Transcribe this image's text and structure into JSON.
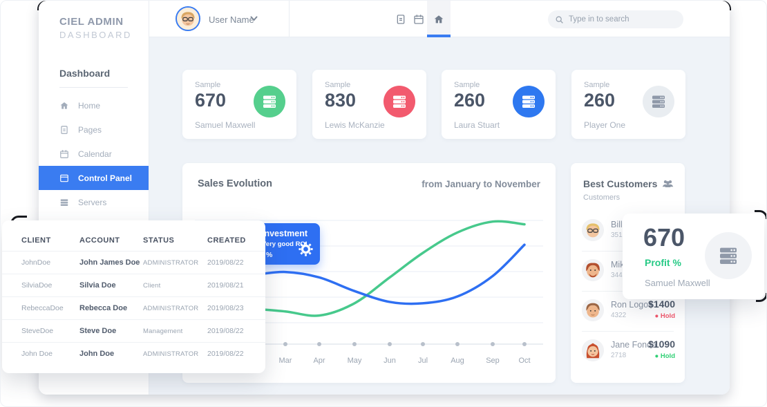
{
  "brand": {
    "line1": "CIEL ADMIN",
    "line2": "DASHBOARD"
  },
  "sidebar": {
    "section": "Dashboard",
    "items": [
      {
        "label": "Home",
        "icon": "home-icon",
        "active": false
      },
      {
        "label": "Pages",
        "icon": "pages-icon",
        "active": false
      },
      {
        "label": "Calendar",
        "icon": "calendar-icon",
        "active": false
      },
      {
        "label": "Control Panel",
        "icon": "control-panel-icon",
        "active": true
      },
      {
        "label": "Servers",
        "icon": "servers-icon",
        "active": false
      }
    ]
  },
  "topbar": {
    "user_name": "User Name",
    "search_placeholder": "Type in to search",
    "icons": [
      "pages-icon",
      "calendar-icon",
      "home-icon"
    ]
  },
  "colors": {
    "accent_blue": "#3a7cf1",
    "green": "#47c98c",
    "red": "#f25a6e",
    "muted_circle": "#e9edf1",
    "dark_text": "#4b5668",
    "black_accent": "#17191e"
  },
  "stat_cards": [
    {
      "label": "Sample",
      "value": "670",
      "person": "Samuel Maxwell",
      "accent": "#55cf8d"
    },
    {
      "label": "Sample",
      "value": "830",
      "person": "Lewis McKanzie",
      "accent": "#f25a6e"
    },
    {
      "label": "Sample",
      "value": "260",
      "person": "Laura Stuart",
      "accent": "#2e78f0"
    },
    {
      "label": "Sample",
      "value": "260",
      "person": "Player One",
      "accent": "#e9edf1"
    }
  ],
  "sales_panel": {
    "title": "Sales Evolution",
    "subtitle": "from January to November",
    "tooltip": {
      "title": "Investment",
      "subtitle": "Very good ROI",
      "percent": "%"
    }
  },
  "chart_data": {
    "type": "line",
    "title": "Sales Evolution",
    "subtitle": "from January to November",
    "categories": [
      "Mar",
      "Apr",
      "May",
      "Jun",
      "Jul",
      "Aug",
      "Sep",
      "Oct"
    ],
    "series": [
      {
        "name": "green",
        "color": "#47c98c",
        "values": [
          24,
          21,
          30,
          49,
          67,
          82,
          90,
          88
        ]
      },
      {
        "name": "blue",
        "color": "#2e6ff2",
        "values": [
          53,
          49,
          39,
          31,
          30,
          35,
          50,
          73
        ]
      }
    ],
    "ylim": [
      0,
      100
    ],
    "grid": true,
    "legend": "none"
  },
  "customers_panel": {
    "title": "Best Customers",
    "subtitle": "Customers",
    "items": [
      {
        "name": "Bill Str",
        "id": "3512",
        "amount": "",
        "status": "",
        "status_color": ""
      },
      {
        "name": "Mike H",
        "id": "3442",
        "amount": "",
        "status": "",
        "status_color": ""
      },
      {
        "name": "Ron Logos",
        "id": "4322",
        "amount": "$1400",
        "status": "Hold",
        "status_color": "#f2566b"
      },
      {
        "name": "Jane Fonda",
        "id": "2718",
        "amount": "$1090",
        "status": "Hold",
        "status_color": "#2fd074"
      }
    ]
  },
  "profit_card": {
    "value": "670",
    "label": "Profit %",
    "person": "Samuel Maxwell"
  },
  "client_table": {
    "headers": [
      "CLIENT",
      "ACCOUNT",
      "STATUS",
      "CREATED"
    ],
    "rows": [
      [
        "JohnDoe",
        "John James Doe",
        "ADMINISTRATOR",
        "2019/08/22"
      ],
      [
        "SilviaDoe",
        "Silvia Doe",
        "Client",
        "2019/08/21"
      ],
      [
        "RebeccaDoe",
        "Rebecca Doe",
        "ADMINISTRATOR",
        "2019/08/23"
      ],
      [
        "SteveDoe",
        "Steve Doe",
        "Management",
        "2019/08/22"
      ],
      [
        "John Doe",
        "John Doe",
        "ADMINISTRATOR",
        "2019/08/22"
      ]
    ]
  }
}
